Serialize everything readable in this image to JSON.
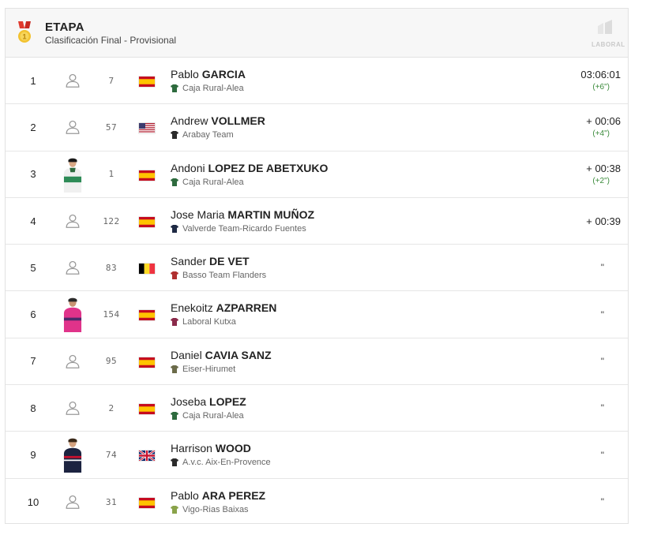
{
  "header": {
    "title": "ETAPA",
    "subtitle": "Clasificación Final - Provisional",
    "sponsor_text": "LABORAL"
  },
  "rows": [
    {
      "position": "1",
      "photo": "placeholder",
      "dorsal": "7",
      "flag": "es",
      "first_name": "Pablo",
      "last_name": "GARCIA",
      "team": "Caja Rural-Alea",
      "team_color": "#2e6b3e",
      "time": "03:06:01",
      "bonus": "(+6\")"
    },
    {
      "position": "2",
      "photo": "placeholder",
      "dorsal": "57",
      "flag": "us",
      "first_name": "Andrew",
      "last_name": "VOLLMER",
      "team": "Arabay Team",
      "team_color": "#2b2b2b",
      "time": "+ 00:06",
      "bonus": "(+4\")"
    },
    {
      "position": "3",
      "photo": "rider-green",
      "dorsal": "1",
      "flag": "es",
      "first_name": "Andoni",
      "last_name": "LOPEZ DE ABETXUKO",
      "team": "Caja Rural-Alea",
      "team_color": "#2e6b3e",
      "time": "+ 00:38",
      "bonus": "(+2\")"
    },
    {
      "position": "4",
      "photo": "placeholder",
      "dorsal": "122",
      "flag": "es",
      "first_name": "Jose Maria",
      "last_name": "MARTIN MUÑOZ",
      "team": "Valverde Team-Ricardo Fuentes",
      "team_color": "#1f2a44",
      "time": "+ 00:39",
      "bonus": ""
    },
    {
      "position": "5",
      "photo": "placeholder",
      "dorsal": "83",
      "flag": "be",
      "first_name": "Sander",
      "last_name": "DE VET",
      "team": "Basso Team Flanders",
      "team_color": "#b03030",
      "time": "\"",
      "bonus": ""
    },
    {
      "position": "6",
      "photo": "rider-pink",
      "dorsal": "154",
      "flag": "es",
      "first_name": "Enekoitz",
      "last_name": "AZPARREN",
      "team": "Laboral Kutxa",
      "team_color": "#8a2a4a",
      "time": "\"",
      "bonus": ""
    },
    {
      "position": "7",
      "photo": "placeholder",
      "dorsal": "95",
      "flag": "es",
      "first_name": "Daniel",
      "last_name": "CAVIA SANZ",
      "team": "Eiser-Hirumet",
      "team_color": "#6b6b4a",
      "time": "\"",
      "bonus": ""
    },
    {
      "position": "8",
      "photo": "placeholder",
      "dorsal": "2",
      "flag": "es",
      "first_name": "Joseba",
      "last_name": "LOPEZ",
      "team": "Caja Rural-Alea",
      "team_color": "#2e6b3e",
      "time": "\"",
      "bonus": ""
    },
    {
      "position": "9",
      "photo": "rider-dark",
      "dorsal": "74",
      "flag": "gb",
      "first_name": "Harrison",
      "last_name": "WOOD",
      "team": "A.v.c. Aix-En-Provence",
      "team_color": "#2b2b2b",
      "time": "\"",
      "bonus": ""
    },
    {
      "position": "10",
      "photo": "placeholder",
      "dorsal": "31",
      "flag": "es",
      "first_name": "Pablo",
      "last_name": "ARA PEREZ",
      "team": "Vigo-Rias Baixas",
      "team_color": "#8aa34a",
      "time": "\"",
      "bonus": ""
    }
  ]
}
